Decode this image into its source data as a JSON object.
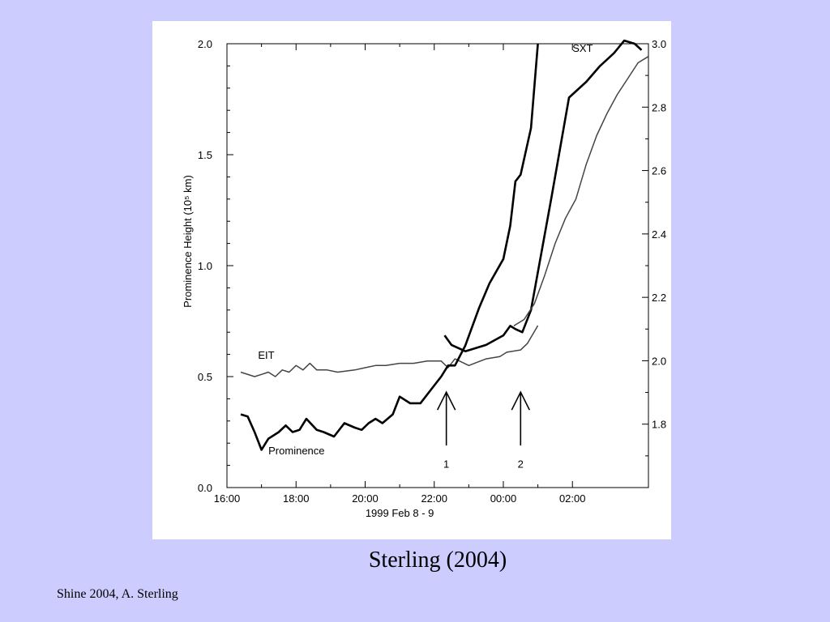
{
  "slide": {
    "caption": "Sterling (2004)",
    "footer": "Shine 2004, A. Sterling"
  },
  "chart_data": {
    "type": "line",
    "xlabel": "1999 Feb 8 - 9",
    "ylabel_left": "Prominence Height (10⁵ km)",
    "x_ticks": [
      "16:00",
      "18:00",
      "20:00",
      "22:00",
      "00:00",
      "02:00"
    ],
    "x_tick_hours": [
      16,
      18,
      20,
      22,
      24,
      26
    ],
    "xlim": [
      16,
      28.2
    ],
    "ylim_left": [
      0,
      2.0
    ],
    "y_ticks_left": [
      "0.0",
      "0.5",
      "1.0",
      "1.5",
      "2.0"
    ],
    "y_tick_values_left": [
      0,
      0.5,
      1.0,
      1.5,
      2.0
    ],
    "ylim_right": [
      1.6,
      3.0
    ],
    "y_ticks_right": [
      "1.8",
      "2.0",
      "2.2",
      "2.4",
      "2.6",
      "2.8",
      "3.0"
    ],
    "y_tick_values_right": [
      1.8,
      2.0,
      2.2,
      2.4,
      2.6,
      2.8,
      3.0
    ],
    "grid": false,
    "series": [
      {
        "name": "EIT",
        "axis": "left",
        "stroke": "#444444",
        "width": 1.5,
        "x": [
          16.4,
          16.8,
          17.0,
          17.2,
          17.4,
          17.6,
          17.8,
          18.0,
          18.2,
          18.4,
          18.6,
          18.9,
          19.2,
          19.7,
          20.0,
          20.3,
          20.6,
          21.0,
          21.4,
          21.8,
          22.2,
          22.4,
          22.6,
          23.0,
          23.5,
          23.9,
          24.1,
          24.5,
          24.7,
          25.0
        ],
        "y": [
          0.52,
          0.5,
          0.51,
          0.52,
          0.5,
          0.53,
          0.52,
          0.55,
          0.53,
          0.56,
          0.53,
          0.53,
          0.52,
          0.53,
          0.54,
          0.55,
          0.55,
          0.56,
          0.56,
          0.57,
          0.57,
          0.54,
          0.58,
          0.55,
          0.58,
          0.59,
          0.61,
          0.62,
          0.65,
          0.73
        ]
      },
      {
        "name": "Prominence",
        "axis": "left",
        "stroke": "#000000",
        "width": 2.6,
        "x": [
          16.4,
          16.6,
          16.8,
          17.0,
          17.2,
          17.5,
          17.7,
          17.9,
          18.1,
          18.3,
          18.6,
          18.8,
          19.1,
          19.4,
          19.7,
          19.9,
          20.1,
          20.3,
          20.5,
          20.8,
          21.0,
          21.3,
          21.6,
          22.0,
          22.2,
          22.4,
          22.6,
          22.9,
          23.3,
          23.6,
          24.0,
          24.2,
          24.35,
          24.5,
          24.8,
          25.0
        ],
        "y": [
          0.33,
          0.32,
          0.25,
          0.17,
          0.22,
          0.25,
          0.28,
          0.25,
          0.26,
          0.31,
          0.26,
          0.25,
          0.23,
          0.29,
          0.27,
          0.26,
          0.29,
          0.31,
          0.29,
          0.33,
          0.41,
          0.38,
          0.38,
          0.46,
          0.5,
          0.55,
          0.55,
          0.64,
          0.81,
          0.92,
          1.03,
          1.18,
          1.38,
          1.41,
          1.62,
          2.0
        ]
      },
      {
        "name": "SXT",
        "axis": "right",
        "stroke": "#000000",
        "width": 2.6,
        "x": [
          22.3,
          22.5,
          22.9,
          23.5,
          24.0,
          24.2,
          24.35,
          24.55,
          24.8,
          25.4,
          25.9,
          26.4,
          26.8,
          27.2,
          27.5,
          27.8,
          28.0
        ],
        "y": [
          2.08,
          2.05,
          2.03,
          2.05,
          2.08,
          2.11,
          2.1,
          2.09,
          2.16,
          2.52,
          2.83,
          2.88,
          2.93,
          2.97,
          3.01,
          3.0,
          2.98
        ]
      },
      {
        "name": "",
        "axis": "right",
        "stroke": "#444444",
        "width": 1.5,
        "x": [
          24.3,
          24.6,
          24.9,
          25.2,
          25.5,
          25.8,
          26.1,
          26.4,
          26.7,
          27.0,
          27.3,
          27.6,
          27.9,
          28.2
        ],
        "y": [
          2.11,
          2.13,
          2.18,
          2.27,
          2.37,
          2.45,
          2.51,
          2.62,
          2.71,
          2.78,
          2.84,
          2.89,
          2.94,
          2.96
        ]
      }
    ],
    "series_labels": [
      "EIT",
      "Prominence",
      "SXT"
    ],
    "annotations": [
      {
        "label": "1",
        "x_hour": 22.35
      },
      {
        "label": "2",
        "x_hour": 24.5
      }
    ]
  }
}
